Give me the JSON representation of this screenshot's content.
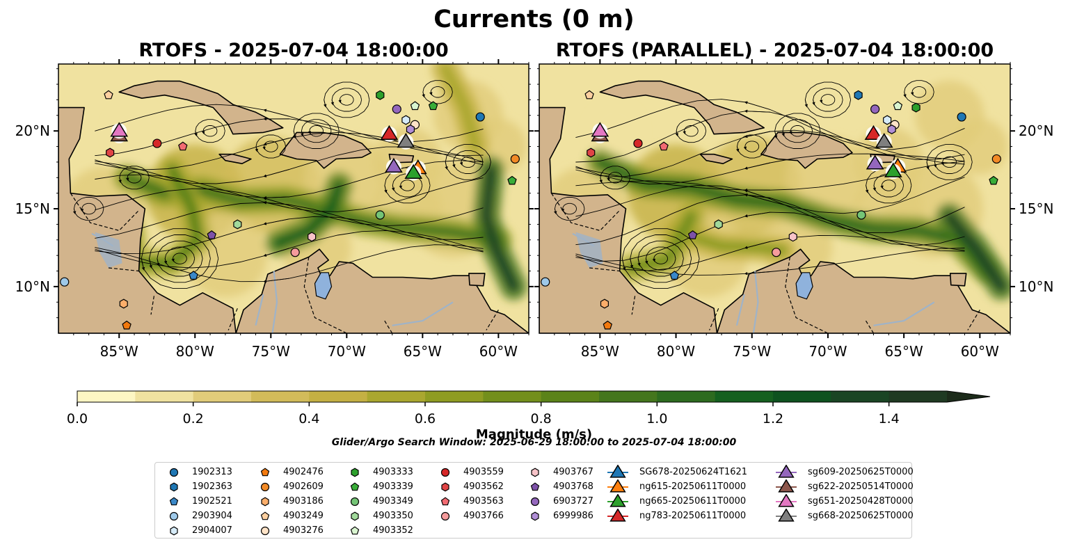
{
  "figure": {
    "title": "Currents (0 m)",
    "search_window": "Glider/Argo Search Window: 2025-06-29 18:00:00 to 2025-07-04 18:00:00"
  },
  "chart_data": [
    {
      "type": "heatmap",
      "title": "RTOFS - 2025-07-04 18:00:00",
      "xlim": [
        -89.0,
        -58.0
      ],
      "ylim": [
        7.0,
        24.3
      ],
      "x_ticks": [
        -85,
        -80,
        -75,
        -70,
        -65,
        -60
      ],
      "x_tick_labels": [
        "85°W",
        "80°W",
        "75°W",
        "70°W",
        "65°W",
        "60°W"
      ],
      "y_ticks": [
        10,
        15,
        20
      ],
      "y_tick_labels": [
        "10°N",
        "15°N",
        "20°N"
      ],
      "y_axis_side": "left",
      "argo_floats": [
        {
          "id": "1902313",
          "lon": -61.2,
          "lat": 20.9
        },
        {
          "id": "2903904",
          "lon": -88.6,
          "lat": 10.3
        },
        {
          "id": "4903559",
          "lon": -82.5,
          "lat": 19.2
        },
        {
          "id": "4903562",
          "lon": -85.6,
          "lat": 18.6
        },
        {
          "id": "4903563",
          "lon": -80.8,
          "lat": 19.0
        },
        {
          "id": "1902521",
          "lon": -80.1,
          "lat": 10.7
        },
        {
          "id": "4903768",
          "lon": -78.9,
          "lat": 13.3
        },
        {
          "id": "4903350",
          "lon": -77.2,
          "lat": 14.0
        },
        {
          "id": "4903767",
          "lon": -72.3,
          "lat": 13.2
        },
        {
          "id": "4903766",
          "lon": -73.4,
          "lat": 12.2
        },
        {
          "id": "4903349",
          "lon": -67.8,
          "lat": 14.6
        },
        {
          "id": "4903333",
          "lon": -67.8,
          "lat": 22.3
        },
        {
          "id": "4903339",
          "lon": -64.3,
          "lat": 21.6
        },
        {
          "id": "4903352",
          "lon": -65.5,
          "lat": 21.6
        },
        {
          "id": "6903727",
          "lon": -66.7,
          "lat": 21.4
        },
        {
          "id": "2904007",
          "lon": -66.1,
          "lat": 20.7
        },
        {
          "id": "4903276",
          "lon": -65.5,
          "lat": 20.4
        },
        {
          "id": "6999986",
          "lon": -65.8,
          "lat": 20.1
        },
        {
          "id": "4903249",
          "lon": -85.7,
          "lat": 22.3
        },
        {
          "id": "4902609",
          "lon": -58.9,
          "lat": 18.2
        },
        {
          "id": "4903339",
          "lon": -59.1,
          "lat": 16.8
        },
        {
          "id": "4903186",
          "lon": -84.7,
          "lat": 8.9
        },
        {
          "id": "4902476",
          "lon": -84.5,
          "lat": 7.5
        }
      ],
      "gliders": [
        {
          "id": "ng783-20250611T0000",
          "lon": -67.2,
          "lat": 19.8
        },
        {
          "id": "sg622-20250514T0000",
          "lon": -85.0,
          "lat": 19.7
        },
        {
          "id": "sg651-20250428T0000",
          "lon": -85.0,
          "lat": 20.0
        },
        {
          "id": "sg668-20250625T0000",
          "lon": -66.1,
          "lat": 19.3
        },
        {
          "id": "ng615-20250611T0000",
          "lon": -65.3,
          "lat": 17.6
        },
        {
          "id": "sg609-20250625T0000",
          "lon": -66.9,
          "lat": 17.7
        },
        {
          "id": "ng665-20250611T0000",
          "lon": -65.6,
          "lat": 17.3
        }
      ]
    },
    {
      "type": "heatmap",
      "title": "RTOFS (PARALLEL) - 2025-07-04 18:00:00",
      "xlim": [
        -89.0,
        -58.0
      ],
      "ylim": [
        7.0,
        24.3
      ],
      "x_ticks": [
        -85,
        -80,
        -75,
        -70,
        -65,
        -60
      ],
      "x_tick_labels": [
        "85°W",
        "80°W",
        "75°W",
        "70°W",
        "65°W",
        "60°W"
      ],
      "y_ticks": [
        10,
        15,
        20
      ],
      "y_tick_labels": [
        "10°N",
        "15°N",
        "20°N"
      ],
      "y_axis_side": "right",
      "argo_floats": [
        {
          "id": "1902313",
          "lon": -61.2,
          "lat": 20.9
        },
        {
          "id": "2903904",
          "lon": -88.6,
          "lat": 10.3
        },
        {
          "id": "4903559",
          "lon": -82.5,
          "lat": 19.2
        },
        {
          "id": "4903562",
          "lon": -85.6,
          "lat": 18.6
        },
        {
          "id": "4903563",
          "lon": -80.8,
          "lat": 19.0
        },
        {
          "id": "1902521",
          "lon": -80.1,
          "lat": 10.7
        },
        {
          "id": "4903768",
          "lon": -78.9,
          "lat": 13.3
        },
        {
          "id": "4903350",
          "lon": -77.2,
          "lat": 14.0
        },
        {
          "id": "4903767",
          "lon": -72.3,
          "lat": 13.2
        },
        {
          "id": "4903766",
          "lon": -73.4,
          "lat": 12.2
        },
        {
          "id": "4903349",
          "lon": -67.8,
          "lat": 14.6
        },
        {
          "id": "4903333",
          "lon": -64.2,
          "lat": 21.5
        },
        {
          "id": "1902363",
          "lon": -68.0,
          "lat": 22.3
        },
        {
          "id": "4903352",
          "lon": -65.4,
          "lat": 21.6
        },
        {
          "id": "6903727",
          "lon": -66.9,
          "lat": 21.4
        },
        {
          "id": "2904007",
          "lon": -66.1,
          "lat": 20.7
        },
        {
          "id": "4903276",
          "lon": -65.6,
          "lat": 20.4
        },
        {
          "id": "6999986",
          "lon": -65.8,
          "lat": 20.1
        },
        {
          "id": "4903249",
          "lon": -85.7,
          "lat": 22.3
        },
        {
          "id": "4902609",
          "lon": -58.9,
          "lat": 18.2
        },
        {
          "id": "4903339",
          "lon": -59.1,
          "lat": 16.8
        },
        {
          "id": "4903186",
          "lon": -84.7,
          "lat": 8.9
        },
        {
          "id": "4902476",
          "lon": -84.5,
          "lat": 7.5
        }
      ],
      "gliders": [
        {
          "id": "ng783-20250611T0000",
          "lon": -67.0,
          "lat": 19.8
        },
        {
          "id": "sg622-20250514T0000",
          "lon": -85.0,
          "lat": 19.7
        },
        {
          "id": "sg651-20250428T0000",
          "lon": -85.0,
          "lat": 20.0
        },
        {
          "id": "sg668-20250625T0000",
          "lon": -66.3,
          "lat": 19.3
        },
        {
          "id": "ng615-20250611T0000",
          "lon": -65.4,
          "lat": 17.7
        },
        {
          "id": "sg609-20250625T0000",
          "lon": -66.9,
          "lat": 17.9
        },
        {
          "id": "ng665-20250611T0000",
          "lon": -65.7,
          "lat": 17.4
        }
      ]
    }
  ],
  "colorbar": {
    "label": "Magnitude (m/s)",
    "min": 0.0,
    "max": 1.5,
    "extend": "max",
    "ticks": [
      0.0,
      0.2,
      0.4,
      0.6,
      0.8,
      1.0,
      1.2,
      1.4
    ],
    "tick_labels": [
      "0.0",
      "0.2",
      "0.4",
      "0.6",
      "0.8",
      "1.0",
      "1.2",
      "1.4"
    ],
    "colors": [
      "#fdf6c3",
      "#f0e2a0",
      "#e1cc7a",
      "#d2bb5a",
      "#c4b043",
      "#aaa72f",
      "#8f9c22",
      "#738f1c",
      "#5b8319",
      "#44761d",
      "#2d6b1f",
      "#15601f",
      "#0e521f",
      "#1a4524",
      "#1f3a22",
      "#1c2b1a"
    ]
  },
  "legend": {
    "placement": "bottom-center",
    "columns": [
      [
        {
          "label": "1902313",
          "marker": "circle",
          "color": "#1f77b4"
        },
        {
          "label": "1902363",
          "marker": "hexagon",
          "color": "#1f77b4"
        },
        {
          "label": "1902521",
          "marker": "pentagon",
          "color": "#3a88c8"
        },
        {
          "label": "2903904",
          "marker": "circle",
          "color": "#9ec9e9"
        },
        {
          "label": "2904007",
          "marker": "hexagon",
          "color": "#d6ebf8"
        }
      ],
      [
        {
          "label": "4902476",
          "marker": "pentagon",
          "color": "#f2790e"
        },
        {
          "label": "4902609",
          "marker": "circle",
          "color": "#f28a26"
        },
        {
          "label": "4903186",
          "marker": "hexagon",
          "color": "#fbae6b"
        },
        {
          "label": "4903249",
          "marker": "pentagon",
          "color": "#fdd0a0"
        },
        {
          "label": "4903276",
          "marker": "circle",
          "color": "#fee3c7"
        }
      ],
      [
        {
          "label": "4903333",
          "marker": "hexagon",
          "color": "#2ca02c"
        },
        {
          "label": "4903339",
          "marker": "pentagon",
          "color": "#39ad39"
        },
        {
          "label": "4903349",
          "marker": "circle",
          "color": "#74c476"
        },
        {
          "label": "4903350",
          "marker": "hexagon",
          "color": "#a1d99b"
        },
        {
          "label": "4903352",
          "marker": "pentagon",
          "color": "#d9f5d0"
        }
      ],
      [
        {
          "label": "4903559",
          "marker": "circle",
          "color": "#d62728"
        },
        {
          "label": "4903562",
          "marker": "hexagon",
          "color": "#e04446"
        },
        {
          "label": "4903563",
          "marker": "pentagon",
          "color": "#f26b72"
        },
        {
          "label": "4903766",
          "marker": "circle",
          "color": "#f59b9c"
        }
      ],
      [
        {
          "label": "4903767",
          "marker": "hexagon",
          "color": "#f7c3c8"
        },
        {
          "label": "4903768",
          "marker": "pentagon",
          "color": "#7d52a8"
        },
        {
          "label": "6903727",
          "marker": "circle",
          "color": "#9467bd"
        },
        {
          "label": "6999986",
          "marker": "hexagon",
          "color": "#b08ed6"
        }
      ],
      [
        {
          "label": "SG678-20250624T1621",
          "marker": "triangle",
          "color": "#1f77b4"
        },
        {
          "label": "ng615-20250611T0000",
          "marker": "triangle",
          "color": "#ff7f0e"
        },
        {
          "label": "ng665-20250611T0000",
          "marker": "triangle",
          "color": "#2ca02c"
        },
        {
          "label": "ng783-20250611T0000",
          "marker": "triangle",
          "color": "#d62728"
        }
      ],
      [
        {
          "label": "sg609-20250625T0000",
          "marker": "triangle",
          "color": "#9467bd"
        },
        {
          "label": "sg622-20250514T0000",
          "marker": "triangle",
          "color": "#8c564b"
        },
        {
          "label": "sg651-20250428T0000",
          "marker": "triangle",
          "color": "#e377c2"
        },
        {
          "label": "sg668-20250625T0000",
          "marker": "triangle",
          "color": "#7f7f7f"
        }
      ]
    ]
  }
}
